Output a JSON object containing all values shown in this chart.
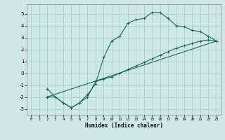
{
  "title": "",
  "xlabel": "Humidex (Indice chaleur)",
  "ylabel": "",
  "bg_color": "#cde8e5",
  "grid_color": "#aacfcb",
  "line_color": "#1a6b5a",
  "xlim": [
    -0.5,
    23.5
  ],
  "ylim": [
    -3.5,
    5.8
  ],
  "xticks": [
    0,
    1,
    2,
    3,
    4,
    5,
    6,
    7,
    8,
    9,
    10,
    11,
    12,
    13,
    14,
    15,
    16,
    17,
    18,
    19,
    20,
    21,
    22,
    23
  ],
  "yticks": [
    -3,
    -2,
    -1,
    0,
    1,
    2,
    3,
    4,
    5
  ],
  "line1_x": [
    2,
    3,
    4,
    5,
    6,
    7,
    8,
    9,
    10,
    11,
    12,
    13,
    14,
    15,
    16,
    17,
    18,
    19,
    20,
    21,
    22,
    23
  ],
  "line1_y": [
    -1.3,
    -2.0,
    -2.5,
    -2.9,
    -2.5,
    -1.8,
    -0.9,
    1.3,
    2.7,
    3.1,
    4.2,
    4.5,
    4.6,
    5.1,
    5.1,
    4.6,
    4.0,
    3.9,
    3.6,
    3.5,
    3.1,
    2.7
  ],
  "line2_x": [
    2,
    3,
    4,
    5,
    6,
    7,
    8,
    9,
    10,
    11,
    12,
    13,
    14,
    15,
    16,
    17,
    18,
    19,
    20,
    21,
    22,
    23
  ],
  "line2_y": [
    -2.0,
    -2.0,
    -2.5,
    -2.9,
    -2.5,
    -2.0,
    -0.7,
    -0.5,
    -0.3,
    0.0,
    0.3,
    0.6,
    0.9,
    1.2,
    1.5,
    1.8,
    2.1,
    2.3,
    2.5,
    2.7,
    2.8,
    2.7
  ],
  "line3_x": [
    2,
    23
  ],
  "line3_y": [
    -2.0,
    2.7
  ]
}
